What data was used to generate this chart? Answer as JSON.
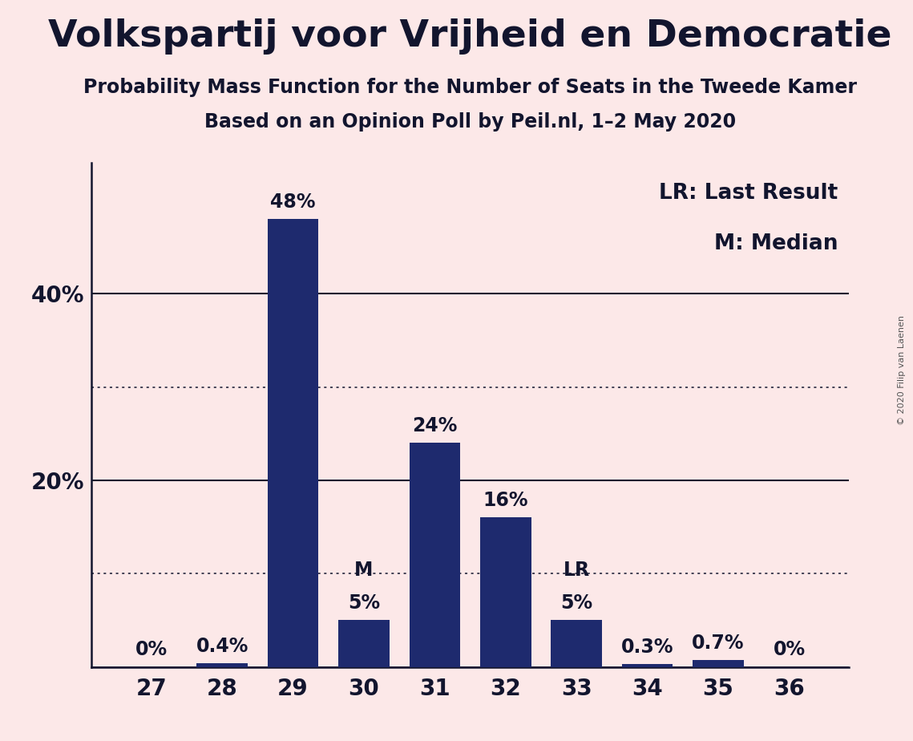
{
  "title": "Volkspartij voor Vrijheid en Democratie",
  "subtitle1": "Probability Mass Function for the Number of Seats in the Tweede Kamer",
  "subtitle2": "Based on an Opinion Poll by Peil.nl, 1–2 May 2020",
  "copyright": "© 2020 Filip van Laenen",
  "categories": [
    27,
    28,
    29,
    30,
    31,
    32,
    33,
    34,
    35,
    36
  ],
  "values": [
    0.0,
    0.4,
    48.0,
    5.0,
    24.0,
    16.0,
    5.0,
    0.3,
    0.7,
    0.0
  ],
  "bar_color": "#1e2a6e",
  "background_color": "#fce8e8",
  "title_color": "#12152e",
  "label_color": "#12152e",
  "grid_color": "#12152e",
  "ytick_positions": [
    20,
    40
  ],
  "ytick_labels": [
    "20%",
    "40%"
  ],
  "solid_lines": [
    0,
    20,
    40
  ],
  "dotted_lines": [
    10,
    30
  ],
  "ylim": [
    0,
    54
  ],
  "median_seat": 30,
  "lr_seat": 33,
  "legend_lr": "LR: Last Result",
  "legend_m": "M: Median",
  "bar_labels": [
    "0%",
    "0.4%",
    "48%",
    "5%",
    "24%",
    "16%",
    "5%",
    "0.3%",
    "0.7%",
    "0%"
  ],
  "title_fontsize": 34,
  "subtitle_fontsize": 17,
  "bar_label_fontsize": 17,
  "axis_tick_fontsize": 20,
  "legend_fontsize": 19,
  "copyright_fontsize": 8
}
